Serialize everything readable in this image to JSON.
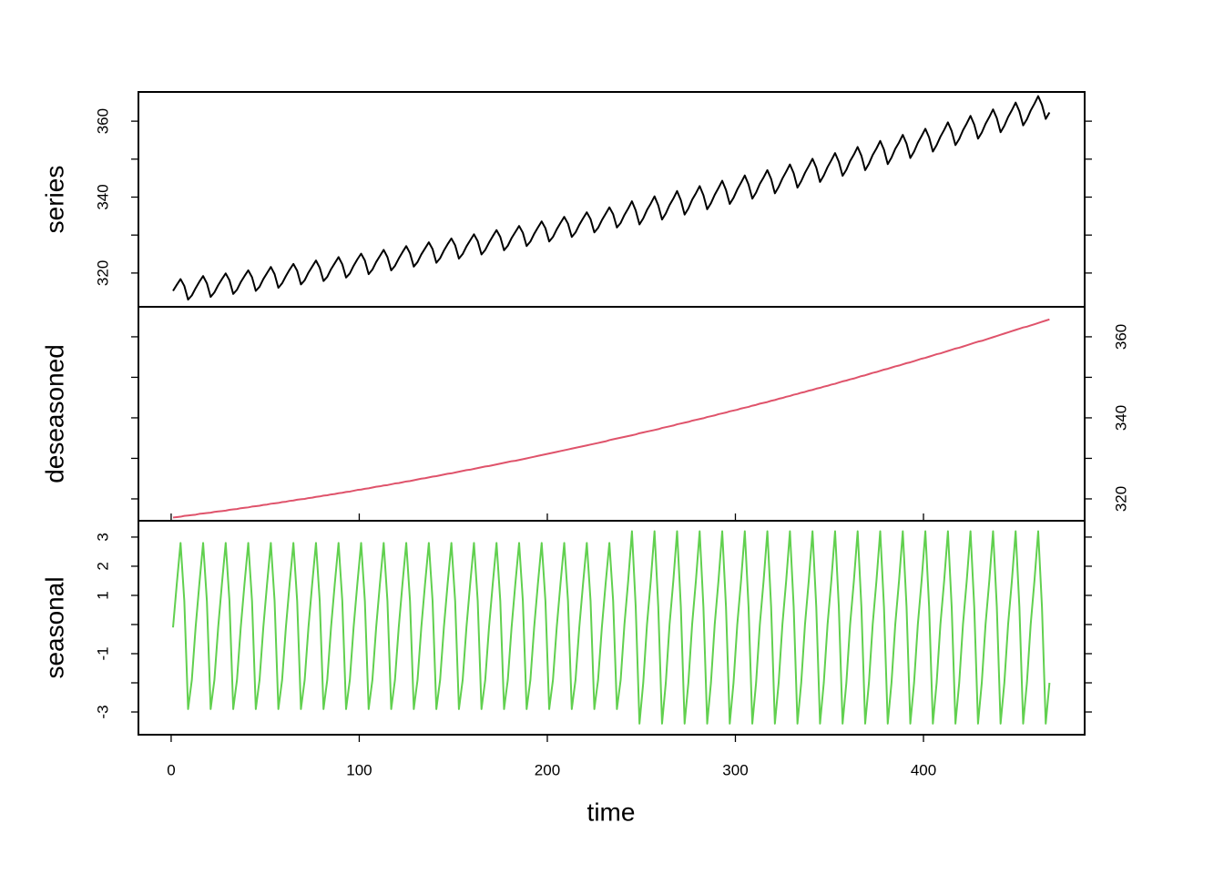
{
  "chart_data": {
    "type": "line",
    "xlabel": "time",
    "xlim": [
      -17.4,
      485.7
    ],
    "xticks": [
      0,
      100,
      200,
      300,
      400
    ],
    "x": [
      1,
      3,
      5,
      7,
      9,
      11,
      13,
      15,
      17,
      19,
      21,
      23,
      25,
      27,
      29,
      31,
      33,
      35,
      37,
      39,
      41,
      43,
      45,
      47,
      49,
      51,
      53,
      55,
      57,
      59,
      61,
      63,
      65,
      67,
      69,
      71,
      73,
      75,
      77,
      79,
      81,
      83,
      85,
      87,
      89,
      91,
      93,
      95,
      97,
      99,
      101,
      103,
      105,
      107,
      109,
      111,
      113,
      115,
      117,
      119,
      121,
      123,
      125,
      127,
      129,
      131,
      133,
      135,
      137,
      139,
      141,
      143,
      145,
      147,
      149,
      151,
      153,
      155,
      157,
      159,
      161,
      163,
      165,
      167,
      169,
      171,
      173,
      175,
      177,
      179,
      181,
      183,
      185,
      187,
      189,
      191,
      193,
      195,
      197,
      199,
      201,
      203,
      205,
      207,
      209,
      211,
      213,
      215,
      217,
      219,
      221,
      223,
      225,
      227,
      229,
      231,
      233,
      235,
      237,
      239,
      241,
      243,
      245,
      247,
      249,
      251,
      253,
      255,
      257,
      259,
      261,
      263,
      265,
      267,
      269,
      271,
      273,
      275,
      277,
      279,
      281,
      283,
      285,
      287,
      289,
      291,
      293,
      295,
      297,
      299,
      301,
      303,
      305,
      307,
      309,
      311,
      313,
      315,
      317,
      319,
      321,
      323,
      325,
      327,
      329,
      331,
      333,
      335,
      337,
      339,
      341,
      343,
      345,
      347,
      349,
      351,
      353,
      355,
      357,
      359,
      361,
      363,
      365,
      367,
      369,
      371,
      373,
      375,
      377,
      379,
      381,
      383,
      385,
      387,
      389,
      391,
      393,
      395,
      397,
      399,
      401,
      403,
      405,
      407,
      409,
      411,
      413,
      415,
      417,
      419,
      421,
      423,
      425,
      427,
      429,
      431,
      433,
      435,
      437,
      439,
      441,
      443,
      445,
      447,
      449,
      451,
      453,
      455,
      457,
      459,
      461,
      463,
      465,
      467
    ],
    "panels": [
      {
        "ylabel": "series",
        "color": "#000000",
        "axis_side": "left",
        "ylim": [
          311.1,
          367.7
        ],
        "yticks": [
          320,
          340,
          360
        ],
        "minor_yticks": [
          330,
          350
        ],
        "values": [
          315.3,
          316.9,
          318.4,
          316.6,
          313.0,
          314.1,
          316.0,
          317.7,
          319.2,
          317.3,
          313.7,
          314.9,
          316.8,
          318.4,
          319.9,
          318.1,
          314.5,
          315.6,
          317.6,
          319.2,
          320.7,
          318.9,
          315.3,
          316.4,
          318.4,
          320.0,
          321.6,
          319.7,
          316.1,
          317.3,
          319.2,
          320.9,
          322.4,
          320.6,
          317.0,
          318.1,
          320.1,
          321.7,
          323.3,
          321.4,
          317.9,
          319.0,
          321.0,
          322.6,
          324.2,
          322.3,
          318.8,
          319.9,
          321.9,
          323.6,
          325.1,
          323.3,
          319.7,
          320.9,
          322.9,
          324.5,
          326.1,
          324.2,
          320.7,
          321.9,
          323.8,
          325.5,
          327.1,
          325.2,
          321.7,
          322.9,
          324.9,
          326.5,
          328.1,
          326.3,
          322.7,
          323.9,
          325.9,
          327.6,
          329.1,
          327.3,
          323.8,
          325.0,
          327.0,
          328.6,
          330.2,
          328.4,
          324.9,
          326.1,
          328.0,
          329.7,
          331.3,
          329.5,
          326.0,
          327.2,
          329.2,
          330.8,
          332.4,
          330.6,
          327.1,
          328.3,
          330.3,
          332.0,
          333.6,
          331.8,
          328.3,
          329.5,
          331.5,
          333.2,
          334.8,
          333.0,
          329.5,
          330.7,
          332.7,
          334.4,
          336.0,
          334.2,
          330.7,
          331.9,
          333.9,
          335.6,
          337.3,
          335.5,
          332.0,
          333.2,
          335.3,
          337.0,
          338.9,
          336.5,
          332.8,
          334.4,
          336.6,
          338.3,
          340.2,
          337.8,
          334.1,
          335.7,
          337.9,
          339.6,
          341.6,
          339.2,
          335.4,
          337.0,
          339.3,
          341.0,
          342.9,
          340.5,
          336.8,
          338.4,
          340.6,
          342.4,
          344.3,
          341.9,
          338.2,
          339.8,
          342.0,
          343.8,
          345.7,
          343.3,
          339.6,
          341.2,
          343.5,
          345.2,
          347.1,
          344.8,
          341.0,
          342.7,
          344.9,
          346.7,
          348.6,
          346.3,
          342.5,
          344.2,
          346.4,
          348.2,
          350.1,
          347.8,
          344.0,
          345.7,
          347.9,
          349.7,
          351.6,
          349.3,
          345.6,
          347.2,
          349.5,
          351.2,
          353.2,
          350.9,
          347.1,
          348.8,
          351.1,
          352.8,
          354.8,
          352.5,
          348.7,
          350.4,
          352.7,
          354.4,
          356.4,
          354.1,
          350.3,
          352.0,
          354.3,
          356.1,
          358.0,
          355.7,
          352.0,
          353.7,
          355.9,
          357.7,
          359.7,
          357.4,
          353.7,
          355.3,
          357.6,
          359.4,
          361.4,
          359.1,
          355.4,
          357.0,
          359.3,
          361.1,
          363.1,
          360.8,
          357.1,
          358.8,
          361.1,
          362.9,
          364.9,
          362.6,
          358.9,
          360.5,
          362.8,
          364.6,
          366.6,
          364.3,
          360.6,
          362.3
        ]
      },
      {
        "ylabel": "deseasoned",
        "color": "#DF536B",
        "axis_side": "right",
        "ylim": [
          314.6,
          367.4
        ],
        "yticks": [
          320,
          340,
          360
        ],
        "minor_yticks": [
          330,
          350
        ],
        "values": [
          315.4,
          315.5,
          315.6,
          315.8,
          315.9,
          316.0,
          316.1,
          316.3,
          316.4,
          316.5,
          316.6,
          316.8,
          316.9,
          317.0,
          317.1,
          317.3,
          317.4,
          317.5,
          317.7,
          317.8,
          317.9,
          318.1,
          318.2,
          318.3,
          318.5,
          318.6,
          318.8,
          318.9,
          319.0,
          319.2,
          319.3,
          319.5,
          319.6,
          319.8,
          319.9,
          320.0,
          320.2,
          320.3,
          320.5,
          320.6,
          320.8,
          320.9,
          321.1,
          321.2,
          321.4,
          321.5,
          321.7,
          321.8,
          322.0,
          322.2,
          322.3,
          322.5,
          322.6,
          322.8,
          323.0,
          323.1,
          323.3,
          323.4,
          323.6,
          323.8,
          323.9,
          324.1,
          324.3,
          324.4,
          324.6,
          324.8,
          325.0,
          325.1,
          325.3,
          325.5,
          325.6,
          325.8,
          326.0,
          326.2,
          326.3,
          326.5,
          326.7,
          326.9,
          327.1,
          327.2,
          327.4,
          327.6,
          327.8,
          328.0,
          328.1,
          328.3,
          328.5,
          328.7,
          328.9,
          329.1,
          329.3,
          329.4,
          329.6,
          329.8,
          330.0,
          330.2,
          330.4,
          330.6,
          330.8,
          331.0,
          331.2,
          331.4,
          331.6,
          331.8,
          332.0,
          332.2,
          332.4,
          332.6,
          332.8,
          333.0,
          333.2,
          333.4,
          333.6,
          333.8,
          334.0,
          334.2,
          334.5,
          334.7,
          334.9,
          335.1,
          335.3,
          335.5,
          335.7,
          335.9,
          336.2,
          336.4,
          336.6,
          336.8,
          337.0,
          337.2,
          337.5,
          337.7,
          337.9,
          338.1,
          338.4,
          338.6,
          338.8,
          339.0,
          339.3,
          339.5,
          339.7,
          339.9,
          340.2,
          340.4,
          340.6,
          340.9,
          341.1,
          341.3,
          341.6,
          341.8,
          342.0,
          342.3,
          342.5,
          342.7,
          343.0,
          343.2,
          343.5,
          343.7,
          343.9,
          344.2,
          344.4,
          344.7,
          344.9,
          345.2,
          345.4,
          345.7,
          345.9,
          346.2,
          346.4,
          346.7,
          346.9,
          347.2,
          347.4,
          347.7,
          347.9,
          348.2,
          348.4,
          348.7,
          349.0,
          349.2,
          349.5,
          349.7,
          350.0,
          350.3,
          350.5,
          350.8,
          351.1,
          351.3,
          351.6,
          351.9,
          352.1,
          352.4,
          352.7,
          352.9,
          353.2,
          353.5,
          353.7,
          354.0,
          354.3,
          354.6,
          354.8,
          355.1,
          355.4,
          355.7,
          355.9,
          356.2,
          356.5,
          356.8,
          357.1,
          357.3,
          357.6,
          357.9,
          358.2,
          358.5,
          358.8,
          359.0,
          359.3,
          359.6,
          359.9,
          360.2,
          360.5,
          360.8,
          361.1,
          361.4,
          361.7,
          362.0,
          362.3,
          362.5,
          362.8,
          363.1,
          363.4,
          363.7,
          364.0,
          364.3
        ]
      },
      {
        "ylabel": "seasonal",
        "color": "#61D04F",
        "axis_side": "left",
        "ylim": [
          -3.78,
          3.56
        ],
        "yticks": [
          -3,
          -1,
          1,
          2,
          3
        ],
        "minor_yticks": [
          -2,
          0
        ],
        "values": [
          -0.1,
          1.4,
          2.8,
          0.8,
          -2.9,
          -1.9,
          -0.1,
          1.4,
          2.8,
          0.8,
          -2.9,
          -1.9,
          -0.1,
          1.4,
          2.8,
          0.8,
          -2.9,
          -1.9,
          -0.1,
          1.4,
          2.8,
          0.8,
          -2.9,
          -1.9,
          -0.1,
          1.4,
          2.8,
          0.8,
          -2.9,
          -1.9,
          -0.1,
          1.4,
          2.8,
          0.8,
          -2.9,
          -1.9,
          -0.1,
          1.4,
          2.8,
          0.8,
          -2.9,
          -1.9,
          -0.1,
          1.4,
          2.8,
          0.8,
          -2.9,
          -1.9,
          -0.1,
          1.4,
          2.8,
          0.8,
          -2.9,
          -1.9,
          -0.1,
          1.4,
          2.8,
          0.8,
          -2.9,
          -1.9,
          -0.1,
          1.4,
          2.8,
          0.8,
          -2.9,
          -1.9,
          -0.1,
          1.4,
          2.8,
          0.8,
          -2.9,
          -1.9,
          -0.1,
          1.4,
          2.8,
          0.8,
          -2.9,
          -1.9,
          -0.1,
          1.4,
          2.8,
          0.8,
          -2.9,
          -1.9,
          -0.1,
          1.4,
          2.8,
          0.8,
          -2.9,
          -1.9,
          -0.1,
          1.4,
          2.8,
          0.8,
          -2.9,
          -1.9,
          -0.1,
          1.4,
          2.8,
          0.8,
          -2.9,
          -1.9,
          -0.1,
          1.4,
          2.8,
          0.8,
          -2.9,
          -1.9,
          -0.1,
          1.4,
          2.8,
          0.8,
          -2.9,
          -1.9,
          -0.1,
          1.4,
          2.8,
          0.8,
          -2.9,
          -1.9,
          0.0,
          1.5,
          3.2,
          0.6,
          -3.4,
          -2.0,
          0.0,
          1.5,
          3.2,
          0.6,
          -3.4,
          -2.0,
          0.0,
          1.5,
          3.2,
          0.6,
          -3.4,
          -2.0,
          0.0,
          1.5,
          3.2,
          0.6,
          -3.4,
          -2.0,
          0.0,
          1.5,
          3.2,
          0.6,
          -3.4,
          -2.0,
          0.0,
          1.5,
          3.2,
          0.6,
          -3.4,
          -2.0,
          0.0,
          1.5,
          3.2,
          0.6,
          -3.4,
          -2.0,
          0.0,
          1.5,
          3.2,
          0.6,
          -3.4,
          -2.0,
          0.0,
          1.5,
          3.2,
          0.6,
          -3.4,
          -2.0,
          0.0,
          1.5,
          3.2,
          0.6,
          -3.4,
          -2.0,
          0.0,
          1.5,
          3.2,
          0.6,
          -3.4,
          -2.0,
          0.0,
          1.5,
          3.2,
          0.6,
          -3.4,
          -2.0,
          0.0,
          1.5,
          3.2,
          0.6,
          -3.4,
          -2.0,
          0.0,
          1.5,
          3.2,
          0.6,
          -3.4,
          -2.0,
          0.0,
          1.5,
          3.2,
          0.6,
          -3.4,
          -2.0,
          0.0,
          1.5,
          3.2,
          0.6,
          -3.4,
          -2.0,
          0.0,
          1.5,
          3.2,
          0.6,
          -3.4,
          -2.0,
          0.0,
          1.5,
          3.2,
          0.6,
          -3.4,
          -2.0,
          0.0,
          1.5,
          3.2,
          0.6,
          -3.4,
          -2.0
        ]
      }
    ]
  }
}
